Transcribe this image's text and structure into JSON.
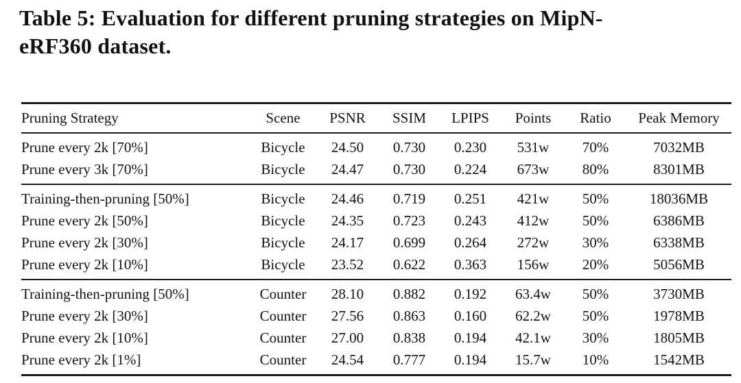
{
  "caption": {
    "line1": "Table 5: Evaluation for different pruning strategies on MipN-",
    "line2": "eRF360 dataset."
  },
  "table": {
    "columns": [
      {
        "key": "strategy",
        "label": "Pruning Strategy",
        "align": "left"
      },
      {
        "key": "scene",
        "label": "Scene",
        "align": "center"
      },
      {
        "key": "psnr",
        "label": "PSNR",
        "align": "center"
      },
      {
        "key": "ssim",
        "label": "SSIM",
        "align": "center"
      },
      {
        "key": "lpips",
        "label": "LPIPS",
        "align": "center"
      },
      {
        "key": "points",
        "label": "Points",
        "align": "center"
      },
      {
        "key": "ratio",
        "label": "Ratio",
        "align": "center"
      },
      {
        "key": "peak_memory",
        "label": "Peak Memory",
        "align": "center"
      }
    ],
    "groups": [
      {
        "rows": [
          [
            "Prune every 2k [70%]",
            "Bicycle",
            "24.50",
            "0.730",
            "0.230",
            "531w",
            "70%",
            "7032MB"
          ],
          [
            "Prune every 3k [70%]",
            "Bicycle",
            "24.47",
            "0.730",
            "0.224",
            "673w",
            "80%",
            "8301MB"
          ]
        ]
      },
      {
        "rows": [
          [
            "Training-then-pruning [50%]",
            "Bicycle",
            "24.46",
            "0.719",
            "0.251",
            "421w",
            "50%",
            "18036MB"
          ],
          [
            "Prune every 2k [50%]",
            "Bicycle",
            "24.35",
            "0.723",
            "0.243",
            "412w",
            "50%",
            "6386MB"
          ],
          [
            "Prune every 2k [30%]",
            "Bicycle",
            "24.17",
            "0.699",
            "0.264",
            "272w",
            "30%",
            "6338MB"
          ],
          [
            "Prune every 2k [10%]",
            "Bicycle",
            "23.52",
            "0.622",
            "0.363",
            "156w",
            "20%",
            "5056MB"
          ]
        ]
      },
      {
        "rows": [
          [
            "Training-then-pruning [50%]",
            "Counter",
            "28.10",
            "0.882",
            "0.192",
            "63.4w",
            "50%",
            "3730MB"
          ],
          [
            "Prune every 2k [30%]",
            "Counter",
            "27.56",
            "0.863",
            "0.160",
            "62.2w",
            "50%",
            "1978MB"
          ],
          [
            "Prune every 2k [10%]",
            "Counter",
            "27.00",
            "0.838",
            "0.194",
            "42.1w",
            "30%",
            "1805MB"
          ],
          [
            "Prune every 2k [1%]",
            "Counter",
            "24.54",
            "0.777",
            "0.194",
            "15.7w",
            "10%",
            "1542MB"
          ]
        ]
      }
    ]
  },
  "colors": {
    "background": "#ffffff",
    "text": "#121212",
    "rule": "#1a1a1a"
  }
}
